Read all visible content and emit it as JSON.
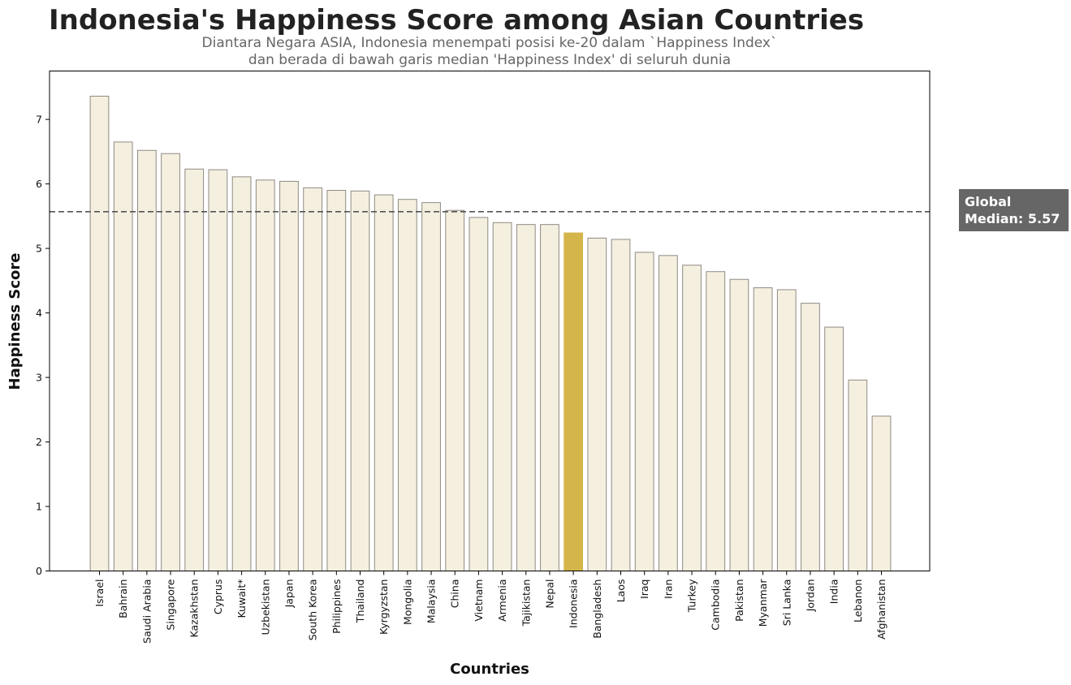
{
  "chart_data": {
    "type": "bar",
    "title": "Indonesia's Happiness Score among Asian Countries",
    "subtitle": [
      "Diantara Negara ASIA, Indonesia menempati posisi ke-20 dalam `Happiness Index`",
      "dan berada di bawah garis median 'Happiness Index' di seluruh dunia"
    ],
    "xlabel": "Countries",
    "ylabel": "Happiness Score",
    "ylim": [
      0,
      7.75
    ],
    "yticks": [
      0,
      1,
      2,
      3,
      4,
      5,
      6,
      7
    ],
    "categories": [
      "Israel",
      "Bahrain",
      "Saudi Arabia",
      "Singapore",
      "Kazakhstan",
      "Cyprus",
      "Kuwait*",
      "Uzbekistan",
      "Japan",
      "South Korea",
      "Philippines",
      "Thailand",
      "Kyrgyzstan",
      "Mongolia",
      "Malaysia",
      "China",
      "Vietnam",
      "Armenia",
      "Tajikistan",
      "Nepal",
      "Indonesia",
      "Bangladesh",
      "Laos",
      "Iraq",
      "Iran",
      "Turkey",
      "Cambodia",
      "Pakistan",
      "Myanmar",
      "Sri Lanka",
      "Jordan",
      "India",
      "Lebanon",
      "Afghanistan"
    ],
    "values": [
      7.36,
      6.65,
      6.52,
      6.47,
      6.23,
      6.22,
      6.11,
      6.06,
      6.04,
      5.94,
      5.9,
      5.89,
      5.83,
      5.76,
      5.71,
      5.59,
      5.48,
      5.4,
      5.37,
      5.37,
      5.24,
      5.16,
      5.14,
      4.94,
      4.89,
      4.74,
      4.64,
      4.52,
      4.39,
      4.36,
      4.15,
      3.78,
      2.96,
      2.4
    ],
    "highlight": "Indonesia",
    "colors": {
      "bar": "#f5efdf",
      "bar_edge": "#8f8a84",
      "highlight": "#d4b54a",
      "median_line": "#555555",
      "median_box": "#666666"
    },
    "median": {
      "value": 5.57,
      "label_lines": [
        "Global",
        "Median: 5.57"
      ]
    },
    "grid": false,
    "legend": "none"
  }
}
